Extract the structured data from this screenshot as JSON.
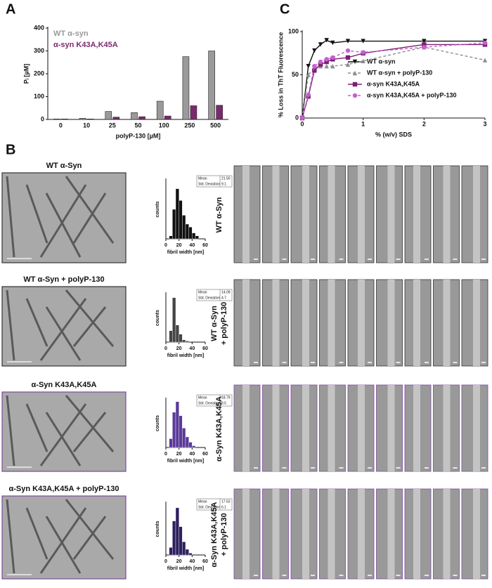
{
  "panel_labels": [
    "A",
    "B",
    "C"
  ],
  "chart_data": [
    {
      "type": "bar",
      "ylabel": "Pᵢ [µM]",
      "xlabel": "polyP-130 [µM]",
      "categories": [
        "0",
        "10",
        "25",
        "50",
        "100",
        "250",
        "500"
      ],
      "series": [
        {
          "name": "WT α-syn",
          "color": "#9a9a9a",
          "values": [
            2,
            5,
            35,
            30,
            80,
            275,
            300
          ]
        },
        {
          "name": "α-syn K43A,K45A",
          "color": "#7b2a6e",
          "values": [
            2,
            2,
            10,
            12,
            15,
            60,
            62
          ]
        }
      ],
      "ylim": [
        0,
        400
      ],
      "yticks": [
        0,
        100,
        200,
        300,
        400
      ],
      "legend": "upper left"
    },
    {
      "type": "line",
      "ylabel": "% Loss in ThT Fluorescence",
      "xlabel": "% (w/v) SDS",
      "x": [
        0,
        0.1,
        0.2,
        0.3,
        0.4,
        0.5,
        0.75,
        1,
        2,
        3
      ],
      "series": [
        {
          "name": "WT α-syn",
          "color": "#111111",
          "marker": "triangle-down",
          "dashed": false,
          "values": [
            0,
            60,
            78,
            85,
            90,
            87,
            89,
            89,
            89,
            89
          ]
        },
        {
          "name": "WT α-syn + polyP-130",
          "color": "#8c8c8c",
          "marker": "triangle-up",
          "dashed": true,
          "values": [
            0,
            50,
            58,
            60,
            60,
            60,
            62,
            66,
            82,
            67
          ]
        },
        {
          "name": "α-syn K43A,K45A",
          "color": "#7b1f72",
          "marker": "square",
          "dashed": false,
          "values": [
            0,
            25,
            55,
            62,
            65,
            68,
            70,
            75,
            85,
            85
          ]
        },
        {
          "name": "α-syn K43A,K45A + polyP-130",
          "color": "#c65fd1",
          "marker": "circle",
          "dashed": true,
          "values": [
            0,
            27,
            60,
            65,
            68,
            70,
            78,
            76,
            82,
            87
          ]
        }
      ],
      "xlim": [
        0,
        3
      ],
      "xticks": [
        0,
        1,
        2,
        3
      ],
      "ylim": [
        0,
        100
      ],
      "yticks": [
        0,
        50,
        100
      ],
      "legend": "lower right"
    },
    {
      "type": "histogram",
      "ylabel": "counts",
      "xlabel": "fibril width [nm]",
      "color": "#111111",
      "bins": [
        0,
        5,
        10,
        15,
        20,
        25,
        30,
        35,
        40,
        45,
        50,
        55,
        60
      ],
      "values": [
        0,
        2,
        20,
        34,
        26,
        16,
        10,
        8,
        4,
        2,
        0,
        0
      ],
      "xlim": [
        0,
        60
      ],
      "xticks": [
        0,
        20,
        40,
        60
      ],
      "ylim": [
        0,
        40
      ],
      "stats": [
        [
          "Mean",
          "21.50"
        ],
        [
          "Std. Deviation",
          "9.1"
        ]
      ]
    },
    {
      "type": "histogram",
      "ylabel": "counts",
      "xlabel": "fibril width [nm]",
      "color": "#444444",
      "bins": [
        0,
        5,
        10,
        15,
        20,
        25,
        30,
        35,
        40,
        45,
        50,
        55,
        60
      ],
      "values": [
        0,
        20,
        78,
        30,
        14,
        4,
        2,
        0,
        0,
        0,
        0,
        0
      ],
      "xlim": [
        0,
        60
      ],
      "xticks": [
        0,
        20,
        40,
        60
      ],
      "ylim": [
        0,
        85
      ],
      "stats": [
        [
          "Mean",
          "14.09"
        ],
        [
          "Std. Deviation",
          "4.7"
        ]
      ]
    },
    {
      "type": "histogram",
      "ylabel": "counts",
      "xlabel": "fibril width [nm]",
      "color": "#5b3a99",
      "bins": [
        0,
        5,
        10,
        15,
        20,
        25,
        30,
        35,
        40,
        45,
        50,
        55,
        60
      ],
      "values": [
        0,
        10,
        40,
        52,
        36,
        22,
        12,
        6,
        2,
        0,
        0,
        0
      ],
      "xlim": [
        0,
        60
      ],
      "xticks": [
        0,
        20,
        40,
        60
      ],
      "ylim": [
        0,
        55
      ],
      "stats": [
        [
          "Mean",
          "18.79"
        ],
        [
          "Std. Deviation",
          "8.5"
        ]
      ]
    },
    {
      "type": "histogram",
      "ylabel": "counts",
      "xlabel": "fibril width [nm]",
      "color": "#2e1f5e",
      "bins": [
        0,
        5,
        10,
        15,
        20,
        25,
        30,
        35,
        40,
        45,
        50,
        55,
        60
      ],
      "values": [
        0,
        8,
        36,
        50,
        30,
        14,
        6,
        2,
        0,
        0,
        0,
        0
      ],
      "xlim": [
        0,
        60
      ],
      "xticks": [
        0,
        20,
        40,
        60
      ],
      "ylim": [
        0,
        55
      ],
      "stats": [
        [
          "Mean",
          "17.63"
        ],
        [
          "Std. Deviation",
          "6.1"
        ]
      ]
    }
  ],
  "micrographs": [
    {
      "title": "WT α-Syn",
      "side_label": [
        "WT α-Syn"
      ]
    },
    {
      "title": "WT α-Syn + polyP-130",
      "side_label": [
        "WT α-Syn",
        "+ polyP-130"
      ]
    },
    {
      "title": "α-Syn K43A,K45A",
      "side_label": [
        "α-Syn K43A,K45A"
      ]
    },
    {
      "title": "α-Syn K43A,K45A + polyP-130",
      "side_label": [
        "α-Syn K43A,K45A",
        "+ polyP-130"
      ]
    }
  ]
}
